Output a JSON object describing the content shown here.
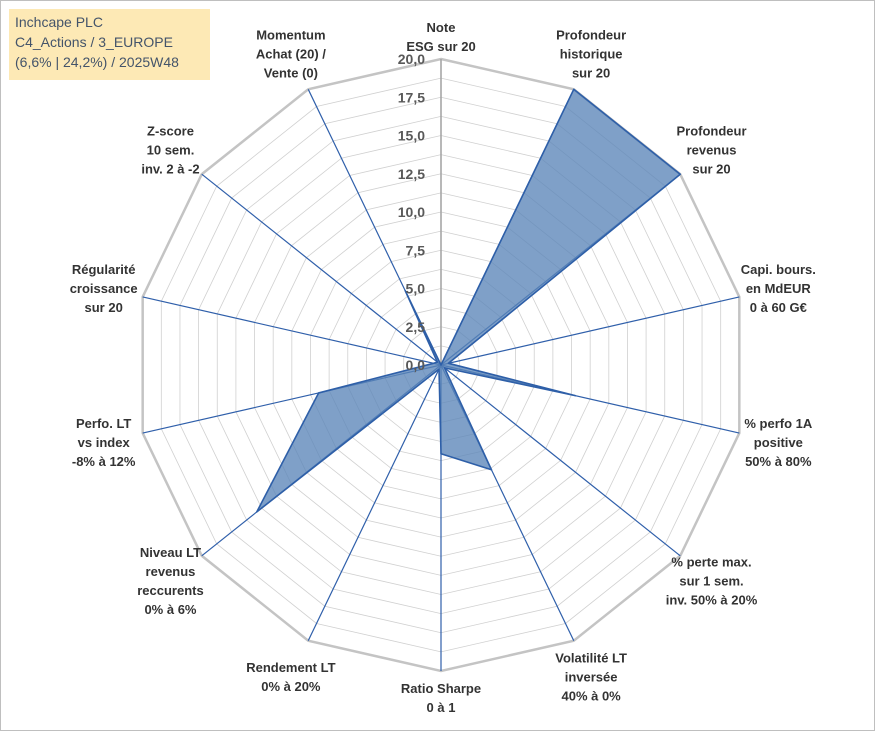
{
  "info_box": {
    "line1": "Inchcape PLC",
    "line2": "C4_Actions / 3_EUROPE",
    "line3": "(6,6% | 24,2%) / 2025W48"
  },
  "colors": {
    "fill": "#5b85b8",
    "line": "#2e5fa8",
    "grid": "#d0d0d0",
    "axis": "#2f5faa"
  },
  "chart_data": {
    "type": "radar",
    "rmin": 0,
    "rmax": 20,
    "grid_rings": 16,
    "tick_labels": [
      "0,0",
      "2,5",
      "5,0",
      "7,5",
      "10,0",
      "12,5",
      "15,0",
      "17,5",
      "20,0"
    ],
    "axes": [
      {
        "lines": [
          "Note",
          "ESG sur 20"
        ],
        "value": 0
      },
      {
        "lines": [
          "Profondeur",
          "historique",
          "sur 20"
        ],
        "value": 20
      },
      {
        "lines": [
          "Profondeur",
          "revenus",
          "sur 20"
        ],
        "value": 20
      },
      {
        "lines": [
          "Capi. bours.",
          "en MdEUR",
          "0 à 60 G€"
        ],
        "value": 0.5
      },
      {
        "lines": [
          "% perfo 1A",
          "positive",
          "50% à 80%"
        ],
        "value": 9
      },
      {
        "lines": [
          "% perte max.",
          "sur 1 sem.",
          "inv. 50% à 20%"
        ],
        "value": 0.3
      },
      {
        "lines": [
          "Volatilité LT",
          "inversée",
          "40% à 0%"
        ],
        "value": 7.6
      },
      {
        "lines": [
          "Ratio Sharpe",
          "0 à 1"
        ],
        "value": 5.8
      },
      {
        "lines": [
          "Rendement LT",
          "0% à 20%"
        ],
        "value": 0.3
      },
      {
        "lines": [
          "Niveau LT",
          "revenus",
          "reccurents",
          "0% à 6%"
        ],
        "value": 15.4
      },
      {
        "lines": [
          "Perfo. LT",
          "vs index",
          "-8% à 12%"
        ],
        "value": 8.2
      },
      {
        "lines": [
          "Régularité",
          "croissance",
          "sur 20"
        ],
        "value": 0.5
      },
      {
        "lines": [
          "Z-score",
          "10 sem.",
          "inv. 2 à -2"
        ],
        "value": 0.3
      },
      {
        "lines": [
          "Momentum",
          "Achat (20) /",
          "Vente (0)"
        ],
        "value": 5.4
      }
    ]
  }
}
